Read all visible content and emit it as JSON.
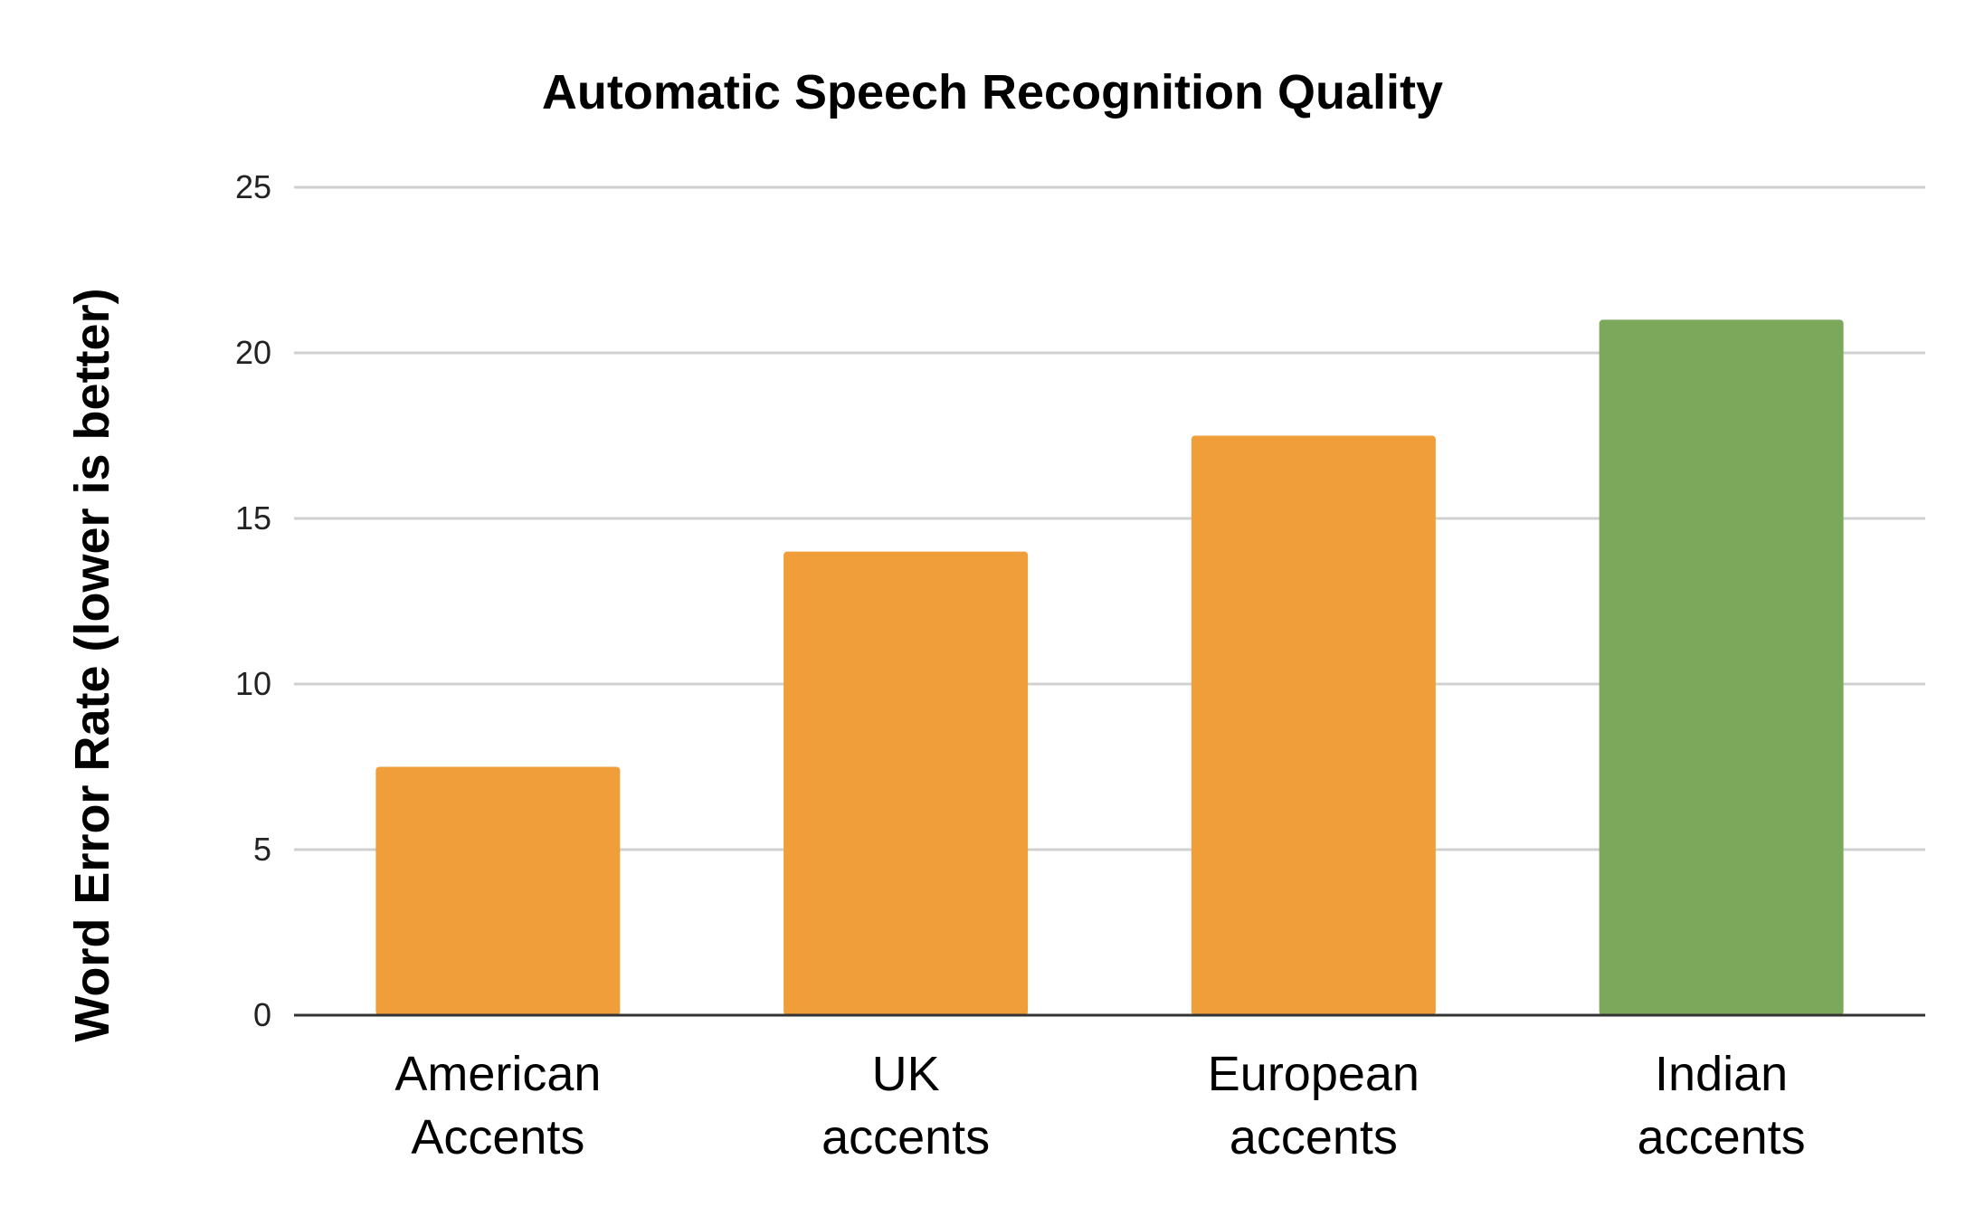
{
  "chart_data": {
    "type": "bar",
    "title": "Automatic Speech Recognition Quality",
    "xlabel": "",
    "ylabel": "Word Error Rate (lower is better)",
    "categories": [
      [
        "American",
        "Accents"
      ],
      [
        "UK",
        "accents"
      ],
      [
        "European",
        "accents"
      ],
      [
        "Indian",
        "accents"
      ]
    ],
    "values": [
      7.5,
      14,
      17.5,
      21
    ],
    "bar_colors": [
      "#f09e3a",
      "#f09e3a",
      "#f09e3a",
      "#7ba85a"
    ],
    "ylim": [
      0,
      25
    ],
    "yticks": [
      0,
      5,
      10,
      15,
      20,
      25
    ],
    "grid": true,
    "legend": "none",
    "colors": {
      "gridline": "#d0d0d0",
      "baseline": "#333333",
      "text": "#000000",
      "tick_text": "#222222"
    }
  }
}
